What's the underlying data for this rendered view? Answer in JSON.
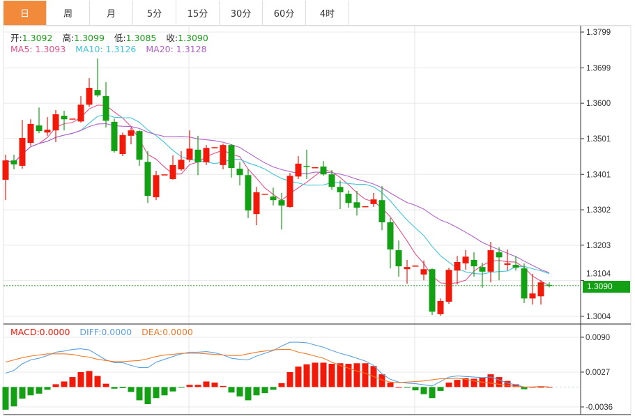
{
  "tabs": [
    {
      "label": "日",
      "active": true
    },
    {
      "label": "周"
    },
    {
      "label": "月"
    },
    {
      "label": "5分"
    },
    {
      "label": "15分"
    },
    {
      "label": "30分"
    },
    {
      "label": "60分"
    },
    {
      "label": "4时"
    }
  ],
  "ohlc_legend": {
    "open_label": "开:",
    "open": "1.3092",
    "high_label": "高:",
    "high": "1.3099",
    "low_label": "低:",
    "low": "1.3085",
    "close_label": "收:",
    "close": "1.3090"
  },
  "ma_legend": {
    "ma5": "MA5: 1.3093",
    "ma10": "MA10: 1.3126",
    "ma20": "MA20: 1.3128"
  },
  "macd_legend": {
    "macd": "MACD:0.0000",
    "diff": "DIFF:0.0000",
    "dea": "DEA:0.0000"
  },
  "current_price": "1.3090",
  "colors": {
    "up": "#f0190a",
    "down": "#14a014",
    "ma5": "#e0508a",
    "ma10": "#40c4d8",
    "ma20": "#b060c8",
    "diff": "#5aa0e0",
    "dea": "#f07a28",
    "active_tab": "#f28a3c"
  },
  "chart_data": [
    {
      "type": "candlestick",
      "ylim": [
        1.299,
        1.382
      ],
      "yticks": [
        "1.3799",
        "1.3699",
        "1.3600",
        "1.3501",
        "1.3401",
        "1.3302",
        "1.3203",
        "1.3104",
        "1.3004"
      ],
      "ma_periods": [
        5,
        10,
        20
      ],
      "ohlc": [
        [
          1.3386,
          1.3456,
          1.3329,
          1.344
        ],
        [
          1.344,
          1.3456,
          1.3415,
          1.3429
        ],
        [
          1.3425,
          1.3553,
          1.3417,
          1.3503
        ],
        [
          1.3489,
          1.3555,
          1.3481,
          1.3542
        ],
        [
          1.3538,
          1.3588,
          1.3516,
          1.3522
        ],
        [
          1.3518,
          1.3561,
          1.3509,
          1.3526
        ],
        [
          1.3524,
          1.3581,
          1.3491,
          1.3569
        ],
        [
          1.3565,
          1.3579,
          1.3524,
          1.3555
        ],
        [
          1.3555,
          1.3557,
          1.3555,
          1.3557
        ],
        [
          1.3549,
          1.362,
          1.3546,
          1.3596
        ],
        [
          1.3596,
          1.367,
          1.359,
          1.3643
        ],
        [
          1.3637,
          1.3725,
          1.3618,
          1.3622
        ],
        [
          1.362,
          1.3659,
          1.3532,
          1.3551
        ],
        [
          1.3548,
          1.3557,
          1.3462,
          1.3466
        ],
        [
          1.3458,
          1.3518,
          1.3452,
          1.3511
        ],
        [
          1.3509,
          1.3532,
          1.3485,
          1.3524
        ],
        [
          1.3522,
          1.3524,
          1.3425,
          1.3442
        ],
        [
          1.3436,
          1.3466,
          1.3321,
          1.3341
        ],
        [
          1.3337,
          1.3411,
          1.3329,
          1.3399
        ],
        [
          1.3399,
          1.3401,
          1.3399,
          1.3401
        ],
        [
          1.3388,
          1.3454,
          1.3386,
          1.3427
        ],
        [
          1.3415,
          1.3466,
          1.3411,
          1.3442
        ],
        [
          1.3442,
          1.3524,
          1.3435,
          1.3473
        ],
        [
          1.347,
          1.3509,
          1.3399,
          1.3435
        ],
        [
          1.3435,
          1.3483,
          1.3427,
          1.3475
        ],
        [
          1.3475,
          1.3477,
          1.3475,
          1.3477
        ],
        [
          1.3427,
          1.3487,
          1.3415,
          1.3483
        ],
        [
          1.3483,
          1.3485,
          1.3392,
          1.3419
        ],
        [
          1.3417,
          1.3436,
          1.337,
          1.3399
        ],
        [
          1.3399,
          1.3415,
          1.3279,
          1.33
        ],
        [
          1.329,
          1.3366,
          1.3259,
          1.3351
        ],
        [
          1.3345,
          1.3347,
          1.3345,
          1.3347
        ],
        [
          1.3339,
          1.3364,
          1.3314,
          1.3329
        ],
        [
          1.3329,
          1.3349,
          1.3247,
          1.3314
        ],
        [
          1.331,
          1.3405,
          1.3308,
          1.3397
        ],
        [
          1.3395,
          1.3452,
          1.3388,
          1.3431
        ],
        [
          1.3425,
          1.347,
          1.3388,
          1.3423
        ],
        [
          1.3419,
          1.3421,
          1.3419,
          1.3421
        ],
        [
          1.3423,
          1.3438,
          1.3397,
          1.3401
        ],
        [
          1.3401,
          1.3413,
          1.3358,
          1.3366
        ],
        [
          1.3366,
          1.3384,
          1.3304,
          1.3351
        ],
        [
          1.3347,
          1.3356,
          1.3308,
          1.3321
        ],
        [
          1.3323,
          1.3355,
          1.3286,
          1.3308
        ],
        [
          1.331,
          1.3312,
          1.331,
          1.3312
        ],
        [
          1.3318,
          1.3349,
          1.331,
          1.3331
        ],
        [
          1.3329,
          1.3368,
          1.3245,
          1.3267
        ],
        [
          1.3267,
          1.3279,
          1.3138,
          1.3191
        ],
        [
          1.3189,
          1.3216,
          1.3115,
          1.3144
        ],
        [
          1.3136,
          1.3162,
          1.3095,
          1.3142
        ],
        [
          1.3144,
          1.3146,
          1.3144,
          1.3146
        ],
        [
          1.3121,
          1.316,
          1.3105,
          1.3136
        ],
        [
          1.3136,
          1.3138,
          1.3008,
          1.3017
        ],
        [
          1.301,
          1.3054,
          1.3006,
          1.3047
        ],
        [
          1.3045,
          1.314,
          1.3039,
          1.3134
        ],
        [
          1.3132,
          1.3173,
          1.3093,
          1.3156
        ],
        [
          1.3152,
          1.3189,
          1.3134,
          1.3171
        ],
        [
          1.3162,
          1.3183,
          1.3115,
          1.3144
        ],
        [
          1.3142,
          1.3154,
          1.3084,
          1.3129
        ],
        [
          1.3129,
          1.3212,
          1.3099,
          1.3189
        ],
        [
          1.3183,
          1.3197,
          1.3105,
          1.3169
        ],
        [
          1.3148,
          1.3191,
          1.3132,
          1.3152
        ],
        [
          1.3148,
          1.3173,
          1.3132,
          1.314
        ],
        [
          1.3138,
          1.3152,
          1.3041,
          1.3054
        ],
        [
          1.3054,
          1.3123,
          1.3037,
          1.3068
        ],
        [
          1.306,
          1.3105,
          1.3037,
          1.3099
        ],
        [
          1.3092,
          1.3099,
          1.3085,
          1.309
        ]
      ]
    },
    {
      "type": "macd",
      "ylim": [
        -0.005,
        0.0105
      ],
      "yticks": [
        "0.0090",
        "0.0027",
        "-0.0036"
      ],
      "macd": [
        -0.0041,
        -0.0035,
        -0.0021,
        -0.0015,
        -0.0012,
        -0.0005,
        0.0005,
        0.001,
        0.0018,
        0.0027,
        0.0029,
        0.002,
        0.0006,
        -0.0003,
        -0.0002,
        -0.0009,
        -0.0024,
        -0.0031,
        -0.002,
        -0.0015,
        -0.0008,
        -0.0001,
        0.0004,
        0.0004,
        0.001,
        0.0008,
        0.0002,
        -0.001,
        -0.0017,
        -0.0024,
        -0.0015,
        -0.0011,
        -0.0005,
        0.0007,
        0.0027,
        0.0037,
        0.0041,
        0.0044,
        0.0044,
        0.0042,
        0.0043,
        0.0042,
        0.0043,
        0.0043,
        0.0038,
        0.0023,
        0.0008,
        0.0,
        -0.0001,
        -0.0006,
        -0.0013,
        -0.002,
        -0.0007,
        0.0008,
        0.0013,
        0.0016,
        0.0015,
        0.0017,
        0.0023,
        0.0018,
        0.0011,
        0.0005,
        -0.0004,
        0.0,
        0.0,
        0.0
      ],
      "diff": [
        0.0025,
        0.003,
        0.0042,
        0.0049,
        0.0052,
        0.0057,
        0.0063,
        0.0065,
        0.0068,
        0.0069,
        0.0067,
        0.0058,
        0.0049,
        0.0044,
        0.0044,
        0.0039,
        0.0035,
        0.0035,
        0.0045,
        0.005,
        0.0055,
        0.006,
        0.0063,
        0.0063,
        0.0064,
        0.0062,
        0.0058,
        0.0052,
        0.005,
        0.0049,
        0.0056,
        0.0061,
        0.0066,
        0.0074,
        0.0081,
        0.0081,
        0.008,
        0.0076,
        0.0072,
        0.0066,
        0.0061,
        0.0057,
        0.0052,
        0.0047,
        0.0039,
        0.0024,
        0.0014,
        0.0009,
        0.0007,
        0.0006,
        0.0004,
        0.0002,
        0.001,
        0.0018,
        0.002,
        0.0019,
        0.0018,
        0.0017,
        0.0018,
        0.0013,
        0.0007,
        0.0004,
        0.0,
        0.0,
        0.0001,
        0.0
      ],
      "dea": [
        0.0045,
        0.0049,
        0.0053,
        0.0056,
        0.0058,
        0.006,
        0.006,
        0.006,
        0.0059,
        0.0056,
        0.0054,
        0.005,
        0.0048,
        0.0046,
        0.0046,
        0.0047,
        0.0048,
        0.0051,
        0.0055,
        0.0058,
        0.0059,
        0.0061,
        0.0061,
        0.0061,
        0.006,
        0.0059,
        0.0058,
        0.0057,
        0.0057,
        0.006,
        0.0063,
        0.0065,
        0.0067,
        0.0068,
        0.0068,
        0.0063,
        0.006,
        0.0056,
        0.0052,
        0.0045,
        0.0039,
        0.0034,
        0.0029,
        0.0025,
        0.0019,
        0.0013,
        0.0009,
        0.0008,
        0.0009,
        0.001,
        0.0011,
        0.0013,
        0.0015,
        0.0015,
        0.0016,
        0.0014,
        0.0011,
        0.0009,
        0.0007,
        0.0005,
        0.0003,
        0.0001,
        0.0,
        0.0,
        0.0001,
        0.0
      ]
    }
  ]
}
